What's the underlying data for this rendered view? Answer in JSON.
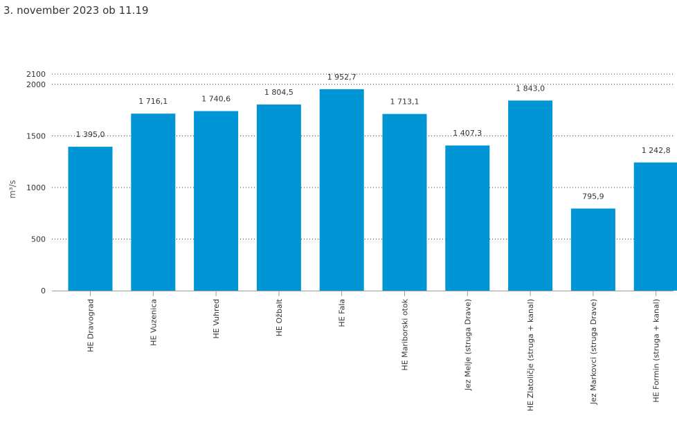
{
  "header": {
    "timestamp": "3. november 2023 ob 11.19"
  },
  "colors": {
    "bar": "#0096D6",
    "grid": "#333333",
    "text": "#333333"
  },
  "chart_data": {
    "type": "bar",
    "ylabel": "m³/s",
    "ylim": [
      0,
      2100
    ],
    "yticks": [
      0,
      500,
      1000,
      1500,
      2000,
      2100
    ],
    "ytick_labels": [
      "0",
      "500",
      "1000",
      "1500",
      "2000",
      "2100"
    ],
    "grid": true,
    "categories": [
      "HE Dravograd",
      "HE Vuzenica",
      "HE Vuhred",
      "HE Ožbalt",
      "HE Fala",
      "HE Mariborski otok",
      "Jez Melje (struga Drave)",
      "HE Zlatoličje (struga + kanal)",
      "Jez Markovci (struga Drave)",
      "HE Formin (struga + kanal)"
    ],
    "values": [
      1395.0,
      1716.1,
      1740.6,
      1804.5,
      1952.7,
      1713.1,
      1407.3,
      1843.0,
      795.9,
      1242.8
    ],
    "value_labels": [
      "1 395,0",
      "1 716,1",
      "1 740,6",
      "1 804,5",
      "1 952,7",
      "1 713,1",
      "1 407,3",
      "1 843,0",
      "795,9",
      "1 242,8"
    ]
  }
}
